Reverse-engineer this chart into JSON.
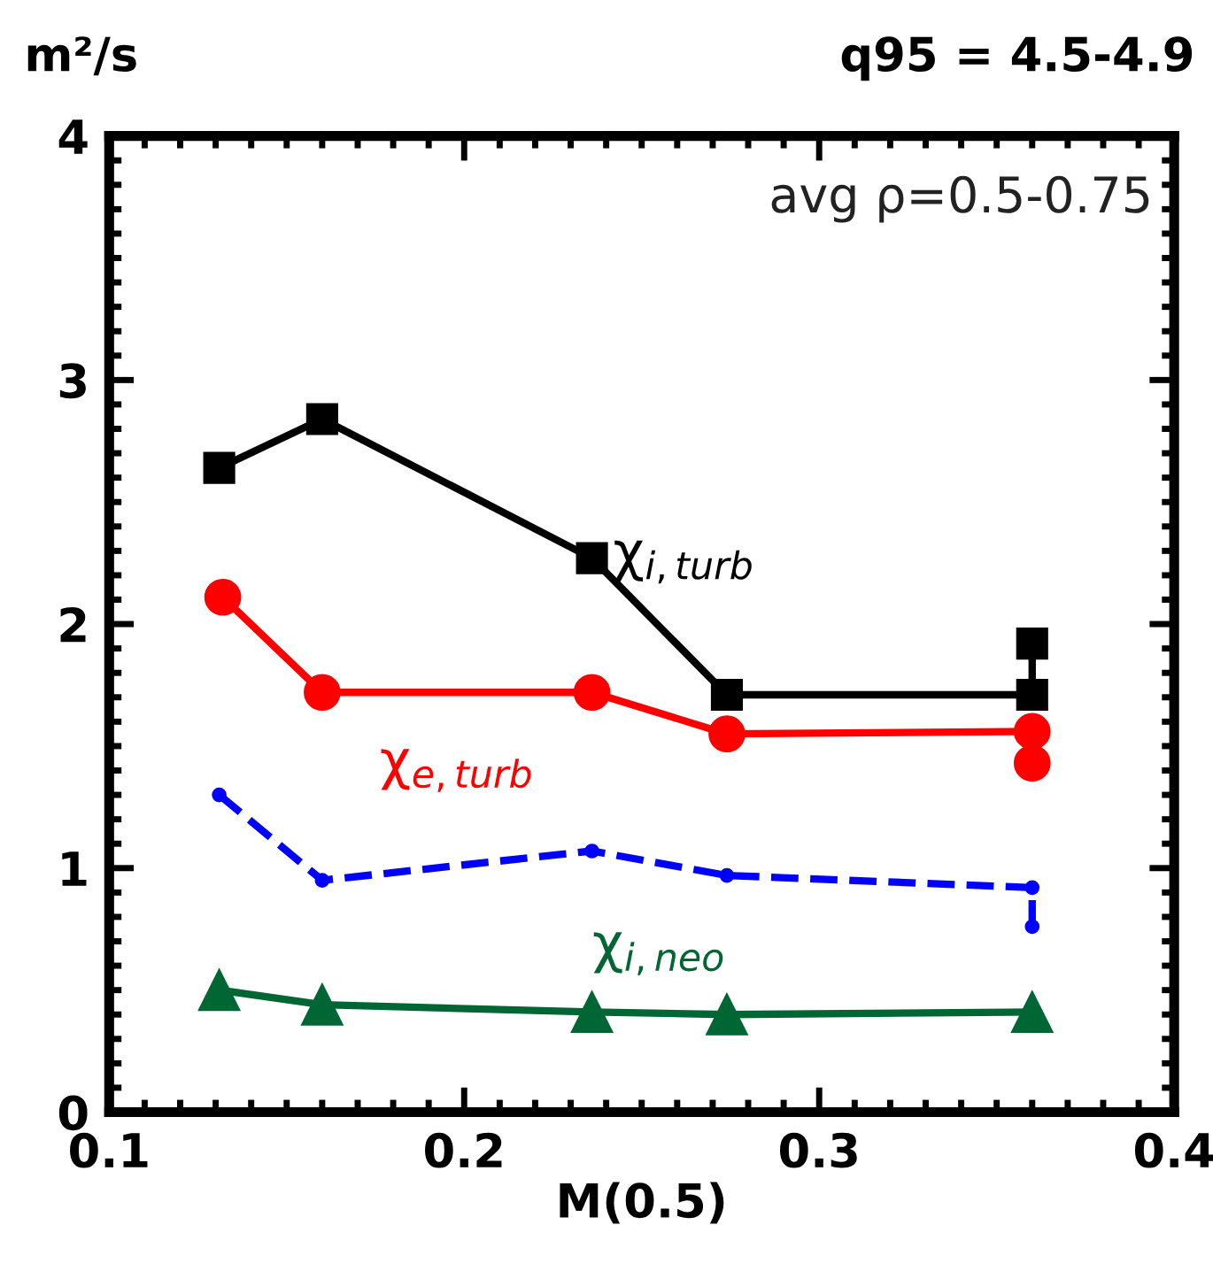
{
  "chart_data": {
    "type": "line",
    "title": "q95 = 4.5-4.9",
    "xlabel": "M(0.5)",
    "ylabel": "m²/s",
    "annotations": [
      "avg ρ=0.5-0.75"
    ],
    "xlim": [
      0.1,
      0.4
    ],
    "xticks": [
      0.1,
      0.2,
      0.3,
      0.4
    ],
    "ylim": [
      0,
      4
    ],
    "yticks": [
      0,
      1,
      2,
      3,
      4
    ],
    "grid": false,
    "legend": false,
    "series": [
      {
        "name": "χ$_{i,turb}$",
        "color": "#000000",
        "marker": "square",
        "line_style": "solid",
        "x": [
          0.131,
          0.16,
          0.236,
          0.274,
          0.36,
          0.36
        ],
        "values": [
          2.64,
          2.84,
          2.27,
          1.71,
          1.71,
          1.92
        ]
      },
      {
        "name": "χ$_{e,turb}$",
        "color": "#ff0000",
        "marker": "circle",
        "line_style": "solid",
        "x": [
          0.132,
          0.16,
          0.236,
          0.274,
          0.36,
          0.36
        ],
        "values": [
          2.11,
          1.72,
          1.72,
          1.55,
          1.56,
          1.43
        ]
      },
      {
        "color": "#0000ff",
        "marker": "circle",
        "line_style": "dashed",
        "x": [
          0.131,
          0.16,
          0.236,
          0.274,
          0.36,
          0.36
        ],
        "values": [
          1.3,
          0.95,
          1.07,
          0.97,
          0.92,
          0.76
        ]
      },
      {
        "name": "χ$_{i,neo}$",
        "color": "#006633",
        "marker": "triangle",
        "line_style": "solid",
        "x": [
          0.131,
          0.16,
          0.236,
          0.274,
          0.36
        ],
        "values": [
          0.5,
          0.44,
          0.41,
          0.4,
          0.41
        ]
      }
    ]
  }
}
